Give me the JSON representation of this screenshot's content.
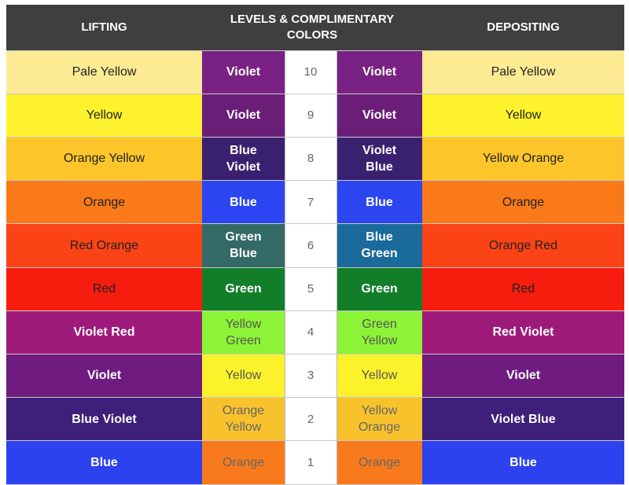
{
  "chart_data": {
    "type": "table",
    "columns": [
      "LIFTING",
      "LEVELS & COMPLIMENTARY COLORS",
      "DEPOSITING"
    ],
    "rows": [
      {
        "level": "10",
        "lifting": "Pale Yellow",
        "lift_comp": "Violet",
        "dep_comp": "Violet",
        "depositing": "Pale Yellow",
        "colors": {
          "lifting": "#fdeb93",
          "lift_comp": "#7a2283",
          "dep_comp": "#7a2283",
          "depositing": "#fdeb93"
        },
        "text": {
          "lifting": "#222222",
          "lift_comp": "#ffffff",
          "dep_comp": "#ffffff",
          "depositing": "#222222"
        }
      },
      {
        "level": "9",
        "lifting": "Yellow",
        "lift_comp": "Violet",
        "dep_comp": "Violet",
        "depositing": "Yellow",
        "colors": {
          "lifting": "#fdf22d",
          "lift_comp": "#6a1e77",
          "dep_comp": "#6a1e77",
          "depositing": "#fdf22d"
        },
        "text": {
          "lifting": "#222222",
          "lift_comp": "#ffffff",
          "dep_comp": "#ffffff",
          "depositing": "#222222"
        }
      },
      {
        "level": "8",
        "lifting": "Orange Yellow",
        "lift_comp": "Blue Violet",
        "dep_comp": "Violet Blue",
        "depositing": "Yellow Orange",
        "colors": {
          "lifting": "#fcc62a",
          "lift_comp": "#3a2170",
          "dep_comp": "#3a2170",
          "depositing": "#fcc62a"
        },
        "text": {
          "lifting": "#222222",
          "lift_comp": "#ffffff",
          "dep_comp": "#ffffff",
          "depositing": "#222222"
        }
      },
      {
        "level": "7",
        "lifting": "Orange",
        "lift_comp": "Blue",
        "dep_comp": "Blue",
        "depositing": "Orange",
        "colors": {
          "lifting": "#fa7a1a",
          "lift_comp": "#2b45f0",
          "dep_comp": "#2b45f0",
          "depositing": "#fa7a1a"
        },
        "text": {
          "lifting": "#222222",
          "lift_comp": "#ffffff",
          "dep_comp": "#ffffff",
          "depositing": "#222222"
        }
      },
      {
        "level": "6",
        "lifting": "Red Orange",
        "lift_comp": "Green Blue",
        "dep_comp": "Blue Green",
        "depositing": "Orange Red",
        "colors": {
          "lifting": "#fb4315",
          "lift_comp": "#336a66",
          "dep_comp": "#1a6a9c",
          "depositing": "#fb4315"
        },
        "text": {
          "lifting": "#222222",
          "lift_comp": "#ffffff",
          "dep_comp": "#ffffff",
          "depositing": "#222222"
        }
      },
      {
        "level": "5",
        "lifting": "Red",
        "lift_comp": "Green",
        "dep_comp": "Green",
        "depositing": "Red",
        "colors": {
          "lifting": "#f61d0e",
          "lift_comp": "#127e2a",
          "dep_comp": "#127e2a",
          "depositing": "#f61d0e"
        },
        "text": {
          "lifting": "#222222",
          "lift_comp": "#ffffff",
          "dep_comp": "#ffffff",
          "depositing": "#222222"
        }
      },
      {
        "level": "4",
        "lifting": "Violet Red",
        "lift_comp": "Yellow Green",
        "dep_comp": "Green Yellow",
        "depositing": "Red Violet",
        "colors": {
          "lifting": "#9d1a7a",
          "lift_comp": "#8cf336",
          "dep_comp": "#8cf336",
          "depositing": "#9d1a7a"
        },
        "text": {
          "lifting": "#ffffff",
          "lift_comp": "#555555",
          "dep_comp": "#555555",
          "depositing": "#ffffff"
        }
      },
      {
        "level": "3",
        "lifting": "Violet",
        "lift_comp": "Yellow",
        "dep_comp": "Yellow",
        "depositing": "Violet",
        "colors": {
          "lifting": "#6f1b80",
          "lift_comp": "#fbf22c",
          "dep_comp": "#fbf22c",
          "depositing": "#6f1b80"
        },
        "text": {
          "lifting": "#ffffff",
          "lift_comp": "#555555",
          "dep_comp": "#555555",
          "depositing": "#ffffff"
        }
      },
      {
        "level": "2",
        "lifting": "Blue Violet",
        "lift_comp": "Orange Yellow",
        "dep_comp": "Yellow Orange",
        "depositing": "Violet Blue",
        "colors": {
          "lifting": "#3e1f7a",
          "lift_comp": "#f8c22c",
          "dep_comp": "#f8c22c",
          "depositing": "#3e1f7a"
        },
        "text": {
          "lifting": "#ffffff",
          "lift_comp": "#666666",
          "dep_comp": "#666666",
          "depositing": "#ffffff"
        }
      },
      {
        "level": "1",
        "lifting": "Blue",
        "lift_comp": "Orange",
        "dep_comp": "Orange",
        "depositing": "Blue",
        "colors": {
          "lifting": "#2c42ee",
          "lift_comp": "#f97a1c",
          "dep_comp": "#f97a1c",
          "depositing": "#2c42ee"
        },
        "text": {
          "lifting": "#ffffff",
          "lift_comp": "#666666",
          "dep_comp": "#666666",
          "depositing": "#ffffff"
        }
      }
    ]
  }
}
